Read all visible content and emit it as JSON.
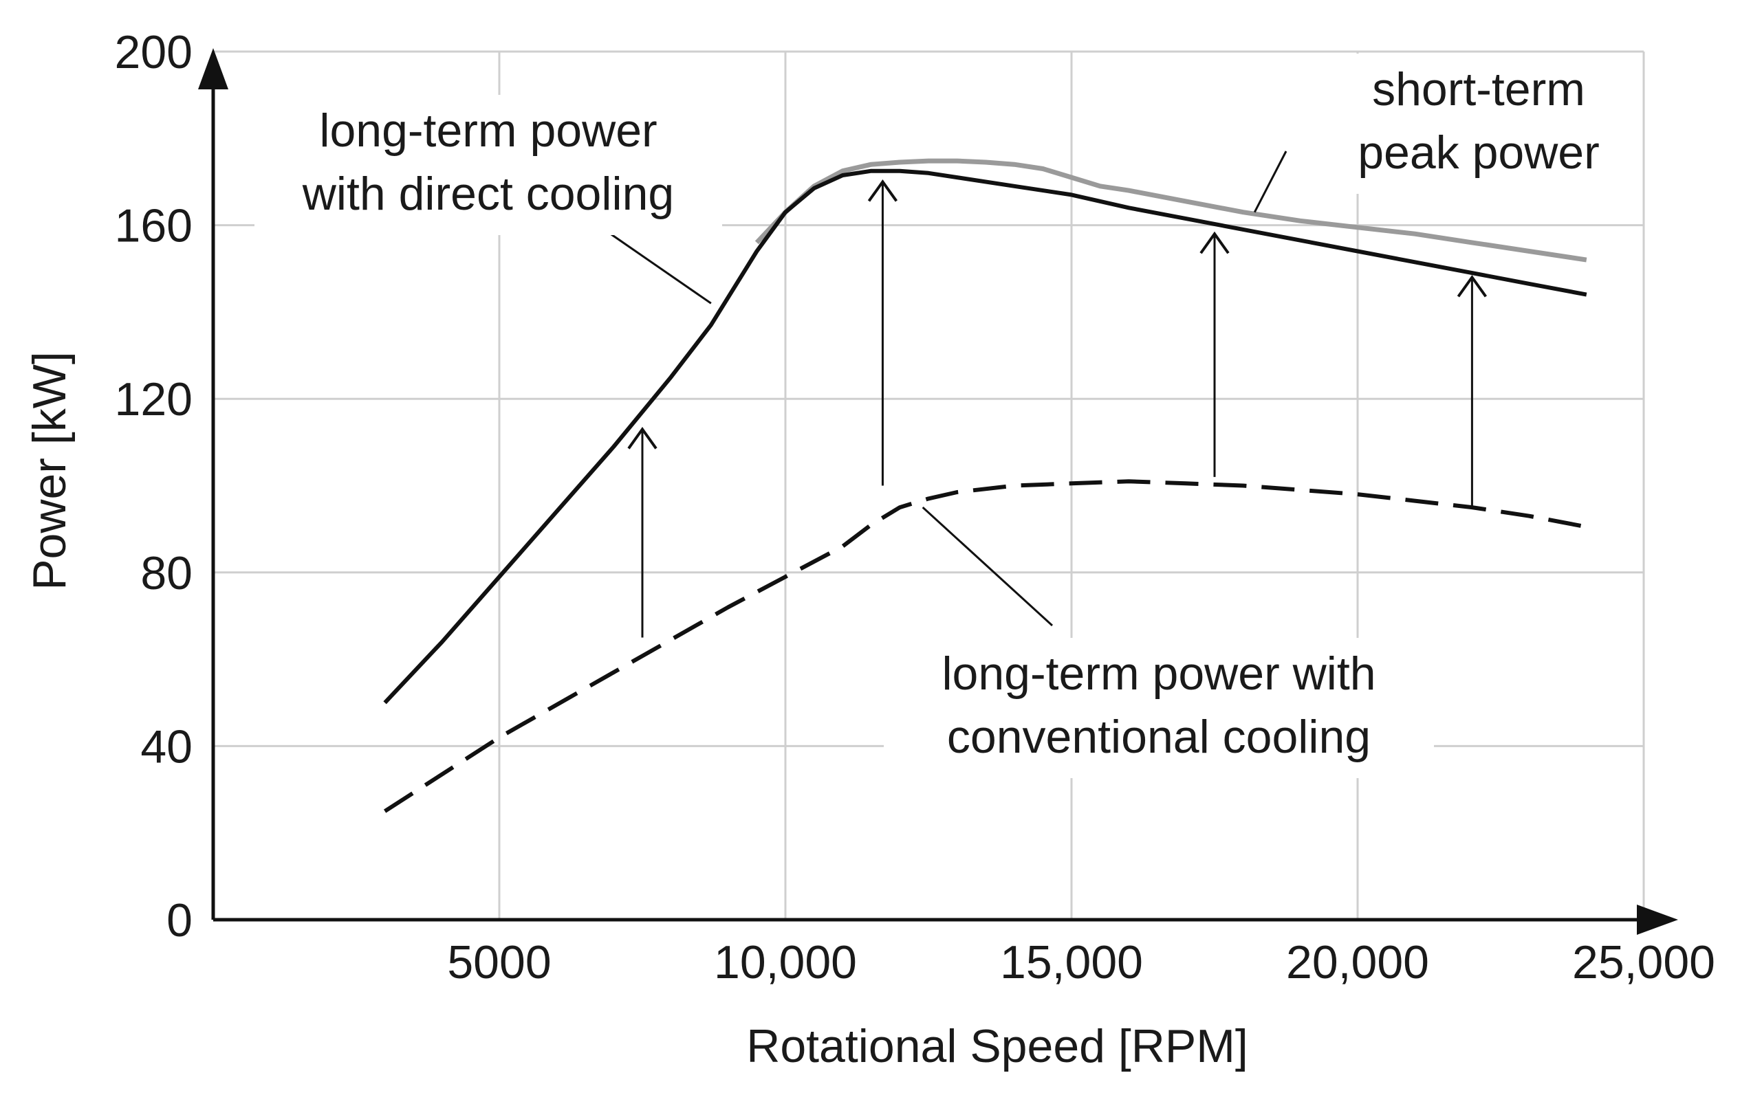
{
  "chart_data": {
    "type": "line",
    "title": "",
    "xlabel": "Rotational Speed [RPM]",
    "ylabel": "Power [kW]",
    "xlim": [
      0,
      25000
    ],
    "ylim": [
      0,
      200
    ],
    "x_ticks": [
      5000,
      10000,
      15000,
      20000,
      25000
    ],
    "x_tick_labels": [
      "5000",
      "10,000",
      "15,000",
      "20,000",
      "25,000"
    ],
    "y_ticks": [
      0,
      40,
      80,
      120,
      160,
      200
    ],
    "y_tick_labels": [
      "0",
      "40",
      "80",
      "120",
      "160",
      "200"
    ],
    "grid": true,
    "series": [
      {
        "name": "short-term peak power",
        "color": "#9a9a9a",
        "style": "solid",
        "x": [
          9500,
          10000,
          10500,
          11000,
          11500,
          12000,
          12500,
          13000,
          13500,
          14000,
          14500,
          15000,
          15500,
          16000,
          17000,
          18000,
          19000,
          20000,
          21000,
          22000,
          23000,
          24000
        ],
        "y": [
          156,
          163,
          169,
          172.5,
          174,
          174.5,
          174.8,
          174.8,
          174.5,
          174,
          173,
          171,
          169,
          168,
          165.5,
          163,
          161,
          159.5,
          158,
          156,
          154,
          152
        ]
      },
      {
        "name": "long-term power with direct cooling",
        "color": "#111111",
        "style": "solid",
        "x": [
          3000,
          4000,
          5000,
          6000,
          7000,
          8000,
          8700,
          9500,
          10000,
          10500,
          11000,
          11500,
          12000,
          12500,
          13000,
          14000,
          15000,
          16000,
          17000,
          18000,
          19000,
          20000,
          21000,
          22000,
          23000,
          24000
        ],
        "y": [
          50,
          64,
          79,
          94,
          109,
          125,
          137,
          154,
          163,
          168.5,
          171.5,
          172.5,
          172.5,
          172,
          171,
          169,
          167,
          164,
          161.5,
          159,
          156.5,
          154,
          151.5,
          149,
          146.5,
          144
        ]
      },
      {
        "name": "long-term power with conventional cooling",
        "color": "#111111",
        "style": "dashed",
        "x": [
          3000,
          5000,
          7000,
          9000,
          10000,
          11000,
          11500,
          12000,
          12500,
          13000,
          14000,
          15000,
          16000,
          17000,
          18000,
          19000,
          20000,
          21000,
          22000,
          23000,
          24000
        ],
        "y": [
          25,
          42,
          57,
          72,
          79,
          86,
          91,
          95,
          97,
          98.5,
          100,
          100.5,
          101,
          100.5,
          100,
          99,
          98,
          96.5,
          95,
          93,
          90.5
        ]
      }
    ],
    "improvement_arrows": [
      {
        "x": 7500,
        "from": 65,
        "to": 113
      },
      {
        "x": 11700,
        "from": 100,
        "to": 170
      },
      {
        "x": 17500,
        "from": 102,
        "to": 158
      },
      {
        "x": 22000,
        "from": 95,
        "to": 148
      }
    ],
    "annotations": [
      {
        "lines": [
          "long-term power",
          "with direct cooling"
        ],
        "points_to": {
          "x": 8700,
          "y": 142
        }
      },
      {
        "lines": [
          "short-term",
          "peak power"
        ],
        "points_to": {
          "x": 18200,
          "y": 163
        }
      },
      {
        "lines": [
          "long-term power with",
          "conventional cooling"
        ],
        "points_to": {
          "x": 12400,
          "y": 95
        }
      }
    ]
  }
}
